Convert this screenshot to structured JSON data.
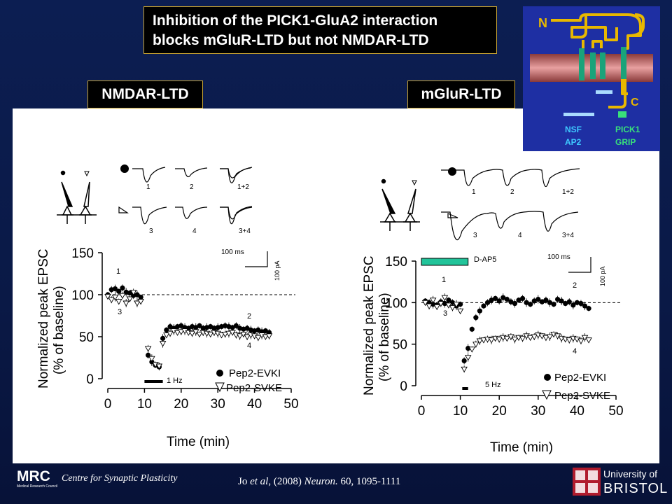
{
  "title": {
    "line1": "Inhibition of the PICK1-GluA2 interaction",
    "line2": "blocks mGluR-LTD but not NMDAR-LTD"
  },
  "panels": {
    "left_label": "NMDAR-LTD",
    "right_label": "mGluR-LTD"
  },
  "inset": {
    "n_label": "N",
    "c_label": "C",
    "nsf": "NSF",
    "ap2": "AP2",
    "pick1": "PICK1",
    "grip": "GRIP"
  },
  "left": {
    "ylabel_line1": "Normalized peak EPSC",
    "ylabel_line2": "(% of baseline)",
    "xlabel": "Time (min)",
    "stim": "1 Hz",
    "legend_filled": "Pep2-EVKI",
    "legend_open": "Pep2-SVKE",
    "scale_time": "100 ms",
    "scale_amp": "100 pA",
    "pt1": "1",
    "pt2": "2",
    "pt3": "3",
    "pt4": "4",
    "tr1": "1",
    "tr2": "2",
    "tr12": "1+2",
    "tr3": "3",
    "tr4": "4",
    "tr34": "3+4"
  },
  "right": {
    "ylabel_line1": "Normalized peak EPSC",
    "ylabel_line2": "(% of baseline)",
    "xlabel": "Time (min)",
    "stim": "5 Hz",
    "drug": "D-AP5",
    "legend_filled": "Pep2-EVKI",
    "legend_open": "Pep2-SVKE",
    "scale_time": "100 ms",
    "scale_amp": "100 pA",
    "pt1": "1",
    "pt2": "2",
    "pt3": "3",
    "pt4": "4",
    "tr1": "1",
    "tr2": "2",
    "tr12": "1+2",
    "tr3": "3",
    "tr4": "4",
    "tr34": "3+4"
  },
  "footer": {
    "mrc_logo": "MRC",
    "mrc_small": "Medical Research Council",
    "centre": "Centre for Synaptic Plasticity",
    "citation_pre": "Jo ",
    "citation_etal": "et al",
    "citation_mid": ", (2008) ",
    "citation_journal": "Neuron.",
    "citation_post": " 60, 1095-1111",
    "uni_line1": "University of",
    "uni_line2": "BRISTOL"
  },
  "chart_data": [
    {
      "type": "scatter",
      "title": "NMDAR-LTD",
      "xlabel": "Time (min)",
      "ylabel": "Normalized peak EPSC (% of baseline)",
      "xlim": [
        0,
        50
      ],
      "ylim": [
        0,
        150
      ],
      "xticks": [
        0,
        10,
        20,
        30,
        40,
        50
      ],
      "yticks": [
        0,
        50,
        100,
        150
      ],
      "baseline": 100,
      "series": [
        {
          "name": "Pep2-EVKI",
          "marker": "filled-circle",
          "x": [
            0,
            1,
            2,
            3,
            4,
            5,
            6,
            7,
            8,
            9,
            11,
            12,
            13,
            14,
            15,
            16,
            17,
            18,
            19,
            20,
            21,
            22,
            23,
            24,
            25,
            26,
            27,
            28,
            29,
            30,
            31,
            32,
            33,
            34,
            35,
            36,
            37,
            38,
            39,
            40,
            41,
            42,
            43,
            44
          ],
          "y": [
            100,
            106,
            107,
            104,
            108,
            103,
            102,
            99,
            100,
            97,
            28,
            20,
            16,
            14,
            48,
            58,
            62,
            60,
            62,
            63,
            61,
            60,
            62,
            61,
            63,
            60,
            61,
            62,
            60,
            61,
            62,
            63,
            62,
            61,
            63,
            60,
            59,
            60,
            58,
            57,
            58,
            56,
            57,
            55
          ]
        },
        {
          "name": "Pep2-SVKE",
          "marker": "open-triangle",
          "x": [
            0,
            1,
            2,
            3,
            4,
            5,
            6,
            7,
            8,
            9,
            11,
            12,
            13,
            14,
            15,
            16,
            17,
            18,
            19,
            20,
            21,
            22,
            23,
            24,
            25,
            26,
            27,
            28,
            29,
            30,
            31,
            32,
            33,
            34,
            35,
            36,
            37,
            38,
            39,
            40,
            41,
            42,
            43,
            44
          ],
          "y": [
            98,
            94,
            97,
            92,
            99,
            90,
            95,
            103,
            90,
            92,
            36,
            24,
            17,
            15,
            42,
            52,
            54,
            57,
            55,
            56,
            57,
            55,
            54,
            56,
            53,
            55,
            54,
            53,
            55,
            54,
            52,
            53,
            54,
            55,
            52,
            51,
            53,
            50,
            52,
            51,
            49,
            52,
            50,
            51
          ]
        }
      ],
      "stimulus_bar": {
        "label": "1 Hz",
        "start": 10,
        "end": 15
      }
    },
    {
      "type": "scatter",
      "title": "mGluR-LTD",
      "xlabel": "Time (min)",
      "ylabel": "Normalized peak EPSC (% of baseline)",
      "xlim": [
        0,
        50
      ],
      "ylim": [
        0,
        150
      ],
      "xticks": [
        0,
        10,
        20,
        30,
        40,
        50
      ],
      "yticks": [
        0,
        50,
        100,
        150
      ],
      "baseline": 100,
      "series": [
        {
          "name": "Pep2-EVKI",
          "marker": "filled-circle",
          "x": [
            1,
            2,
            3,
            4,
            5,
            6,
            7,
            8,
            9,
            10,
            11,
            12,
            13,
            14,
            15,
            16,
            17,
            18,
            19,
            20,
            21,
            22,
            23,
            24,
            25,
            26,
            27,
            28,
            29,
            30,
            31,
            32,
            33,
            34,
            35,
            36,
            37,
            38,
            39,
            40,
            41,
            42,
            43
          ],
          "y": [
            102,
            100,
            98,
            97,
            101,
            99,
            103,
            100,
            96,
            98,
            30,
            45,
            68,
            82,
            90,
            96,
            100,
            103,
            105,
            102,
            106,
            104,
            101,
            99,
            103,
            105,
            100,
            98,
            102,
            104,
            101,
            103,
            100,
            98,
            104,
            102,
            99,
            101,
            97,
            100,
            99,
            96,
            93
          ]
        },
        {
          "name": "Pep2-SVKE",
          "marker": "open-triangle",
          "x": [
            1,
            2,
            3,
            4,
            5,
            6,
            7,
            8,
            9,
            10,
            11,
            12,
            13,
            14,
            15,
            16,
            17,
            18,
            19,
            20,
            21,
            22,
            23,
            24,
            25,
            26,
            27,
            28,
            29,
            30,
            31,
            32,
            33,
            34,
            35,
            36,
            37,
            38,
            39,
            40,
            41,
            42,
            43
          ],
          "y": [
            100,
            96,
            103,
            95,
            99,
            106,
            97,
            94,
            98,
            90,
            20,
            34,
            44,
            50,
            54,
            55,
            56,
            55,
            57,
            56,
            58,
            57,
            59,
            56,
            58,
            57,
            60,
            58,
            59,
            61,
            60,
            58,
            59,
            62,
            60,
            57,
            56,
            55,
            57,
            56,
            54,
            58,
            55
          ]
        }
      ],
      "drug_bar": {
        "label": "D-AP5",
        "start": 0,
        "end": 12
      },
      "stimulus_bar": {
        "label": "5 Hz",
        "start": 10.5,
        "end": 12
      }
    }
  ]
}
